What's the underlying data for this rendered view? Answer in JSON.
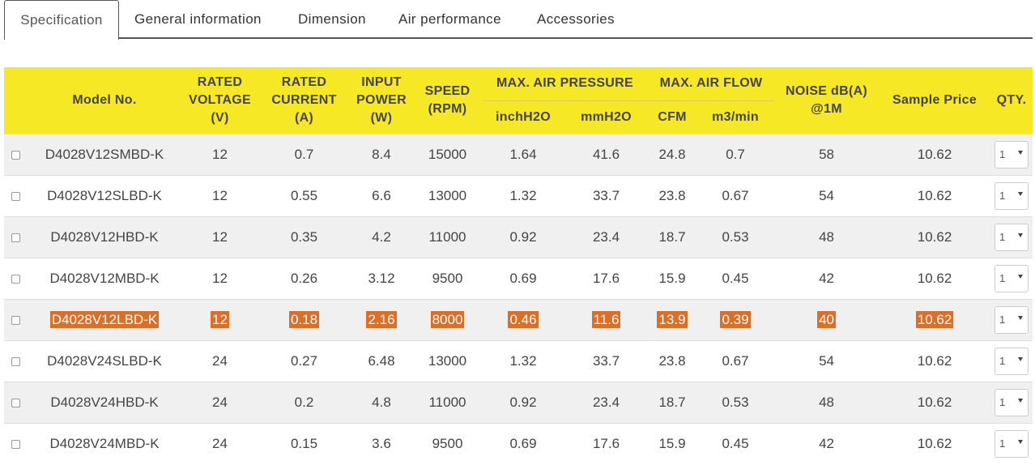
{
  "tabs": [
    {
      "label": "Specification"
    },
    {
      "label": "General information"
    },
    {
      "label": "Dimension"
    },
    {
      "label": "Air performance"
    },
    {
      "label": "Accessories"
    }
  ],
  "table": {
    "headers": {
      "model": "Model No.",
      "voltage": [
        "RATED",
        "VOLTAGE",
        "(V)"
      ],
      "current": [
        "RATED",
        "CURRENT",
        "(A)"
      ],
      "power": [
        "INPUT",
        "POWER",
        "(W)"
      ],
      "speed": [
        "SPEED",
        "(RPM)"
      ],
      "pressure_group": "MAX. AIR PRESSURE",
      "pressure_inch": "inchH2O",
      "pressure_mm": "mmH2O",
      "flow_group": "MAX. AIR FLOW",
      "flow_cfm": "CFM",
      "flow_m3": "m3/min",
      "noise": [
        "NOISE dB(A)",
        "@1M"
      ],
      "price": "Sample Price",
      "qty": "QTY."
    },
    "rows": [
      {
        "model": "D4028V12SMBD-K",
        "voltage": "12",
        "current": "0.7",
        "power": "8.4",
        "speed": "15000",
        "inch": "1.64",
        "mm": "41.6",
        "cfm": "24.8",
        "m3": "0.7",
        "noise": "58",
        "price": "10.62",
        "qty": "1"
      },
      {
        "model": "D4028V12SLBD-K",
        "voltage": "12",
        "current": "0.55",
        "power": "6.6",
        "speed": "13000",
        "inch": "1.32",
        "mm": "33.7",
        "cfm": "23.8",
        "m3": "0.67",
        "noise": "54",
        "price": "10.62",
        "qty": "1"
      },
      {
        "model": "D4028V12HBD-K",
        "voltage": "12",
        "current": "0.35",
        "power": "4.2",
        "speed": "11000",
        "inch": "0.92",
        "mm": "23.4",
        "cfm": "18.7",
        "m3": "0.53",
        "noise": "48",
        "price": "10.62",
        "qty": "1"
      },
      {
        "model": "D4028V12MBD-K",
        "voltage": "12",
        "current": "0.26",
        "power": "3.12",
        "speed": "9500",
        "inch": "0.69",
        "mm": "17.6",
        "cfm": "15.9",
        "m3": "0.45",
        "noise": "42",
        "price": "10.62",
        "qty": "1"
      },
      {
        "model": "D4028V12LBD-K",
        "voltage": "12",
        "current": "0.18",
        "power": "2.16",
        "speed": "8000",
        "inch": "0.46",
        "mm": "11.6",
        "cfm": "13.9",
        "m3": "0.39",
        "noise": "40",
        "price": "10.62",
        "qty": "1"
      },
      {
        "model": "D4028V24SLBD-K",
        "voltage": "24",
        "current": "0.27",
        "power": "6.48",
        "speed": "13000",
        "inch": "1.32",
        "mm": "33.7",
        "cfm": "23.8",
        "m3": "0.67",
        "noise": "54",
        "price": "10.62",
        "qty": "1"
      },
      {
        "model": "D4028V24HBD-K",
        "voltage": "24",
        "current": "0.2",
        "power": "4.8",
        "speed": "11000",
        "inch": "0.92",
        "mm": "23.4",
        "cfm": "18.7",
        "m3": "0.53",
        "noise": "48",
        "price": "10.62",
        "qty": "1"
      },
      {
        "model": "D4028V24MBD-K",
        "voltage": "24",
        "current": "0.15",
        "power": "3.6",
        "speed": "9500",
        "inch": "0.69",
        "mm": "17.6",
        "cfm": "15.9",
        "m3": "0.45",
        "noise": "42",
        "price": "10.62",
        "qty": "1"
      }
    ]
  },
  "colors": {
    "header_bg": "#f7e826",
    "row_alt_bg": "#f0f0f0",
    "highlight_bg": "#d9702a",
    "tab_border": "#555555"
  }
}
